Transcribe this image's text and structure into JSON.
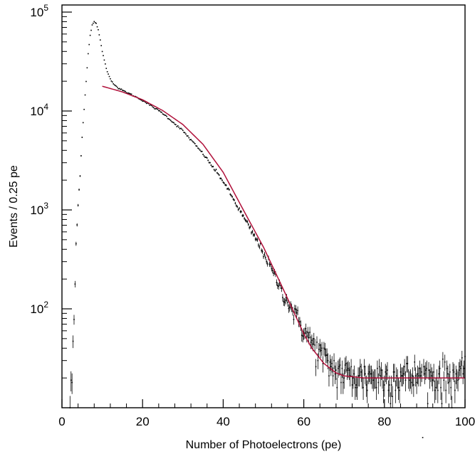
{
  "chart_data": {
    "type": "scatter",
    "title": "",
    "xlabel": "Number of Photoelectrons (pe)",
    "ylabel": "Events / 0.25 pe",
    "x_range": [
      0,
      100
    ],
    "y_range": [
      10,
      118000
    ],
    "y_scale": "log",
    "x_ticks": [
      0,
      20,
      40,
      60,
      80,
      100
    ],
    "x_tick_labels": [
      "0",
      "20",
      "40",
      "60",
      "80",
      "100"
    ],
    "y_ticks": [
      100,
      1000,
      10000,
      100000
    ],
    "y_tick_labels": [
      {
        "base": "10",
        "exp": "2"
      },
      {
        "base": "10",
        "exp": "3"
      },
      {
        "base": "10",
        "exp": "4"
      },
      {
        "base": "10",
        "exp": "5"
      }
    ],
    "grid": false,
    "colors": {
      "data": "#000000",
      "fit": "#b0103a"
    },
    "series": [
      {
        "kind": "histogram_points_with_errors",
        "bin_width": 0.25,
        "points": [
          [
            2.0,
            11
          ],
          [
            2.5,
            20
          ],
          [
            3.0,
            75
          ],
          [
            3.5,
            450
          ],
          [
            4.0,
            1100
          ],
          [
            4.5,
            2300
          ],
          [
            5.0,
            5500
          ],
          [
            5.5,
            10500
          ],
          [
            6.0,
            20000
          ],
          [
            6.5,
            38000
          ],
          [
            7.0,
            58000
          ],
          [
            7.5,
            74000
          ],
          [
            8.0,
            80000
          ],
          [
            8.5,
            77000
          ],
          [
            9.0,
            66000
          ],
          [
            9.5,
            52000
          ],
          [
            10.0,
            40000
          ],
          [
            11.0,
            27000
          ],
          [
            12.0,
            21000
          ],
          [
            13.0,
            18500
          ],
          [
            14.0,
            17000
          ],
          [
            15.0,
            16200
          ],
          [
            17.0,
            14800
          ],
          [
            20.0,
            12800
          ],
          [
            25.0,
            9500
          ],
          [
            30.0,
            6300
          ],
          [
            35.0,
            3700
          ],
          [
            40.0,
            1950
          ],
          [
            45.0,
            850
          ],
          [
            50.0,
            370
          ],
          [
            55.0,
            140
          ],
          [
            60.0,
            62
          ],
          [
            62.0,
            46
          ],
          [
            64.0,
            36
          ],
          [
            66.0,
            28
          ],
          [
            68.0,
            24
          ],
          [
            70.0,
            22
          ],
          [
            75.0,
            21
          ],
          [
            80.0,
            21
          ],
          [
            85.0,
            21
          ],
          [
            90.0,
            21
          ],
          [
            95.0,
            21
          ],
          [
            100.0,
            21
          ]
        ]
      },
      {
        "kind": "fit_curve",
        "points": [
          [
            10,
            17800
          ],
          [
            15,
            15600
          ],
          [
            20,
            13000
          ],
          [
            25,
            10100
          ],
          [
            30,
            7300
          ],
          [
            35,
            4600
          ],
          [
            40,
            2400
          ],
          [
            45,
            1000
          ],
          [
            50,
            420
          ],
          [
            55,
            155
          ],
          [
            60,
            56
          ],
          [
            62,
            40
          ],
          [
            65,
            28
          ],
          [
            68,
            22.5
          ],
          [
            70,
            21
          ],
          [
            75,
            20
          ],
          [
            80,
            20
          ],
          [
            90,
            20
          ],
          [
            100,
            20
          ]
        ]
      }
    ]
  }
}
